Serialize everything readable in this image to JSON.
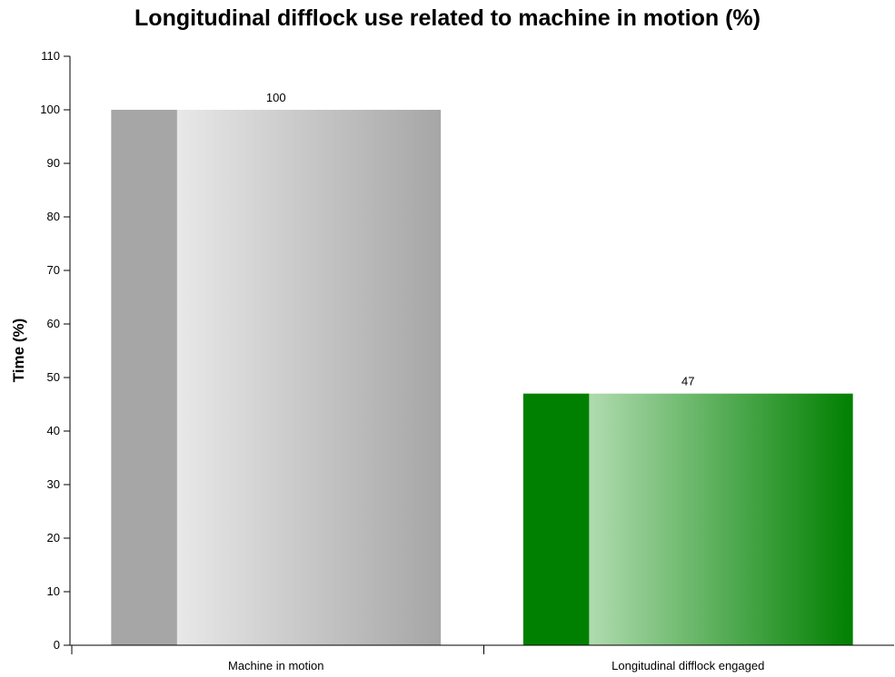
{
  "chart_data": {
    "type": "bar",
    "title": "Longitudinal difflock use related to machine in motion (%)",
    "xlabel": "",
    "ylabel": "Time (%)",
    "ylim": [
      0,
      110
    ],
    "yticks": [
      0,
      10,
      20,
      30,
      40,
      50,
      60,
      70,
      80,
      90,
      100,
      110
    ],
    "categories": [
      "Machine in motion",
      "Longitudinal difflock engaged"
    ],
    "values": [
      100,
      47
    ],
    "data_labels": [
      "100",
      "47"
    ],
    "colors": [
      "#a6a6a6",
      "#008000"
    ],
    "grid": false,
    "legend": "none"
  }
}
